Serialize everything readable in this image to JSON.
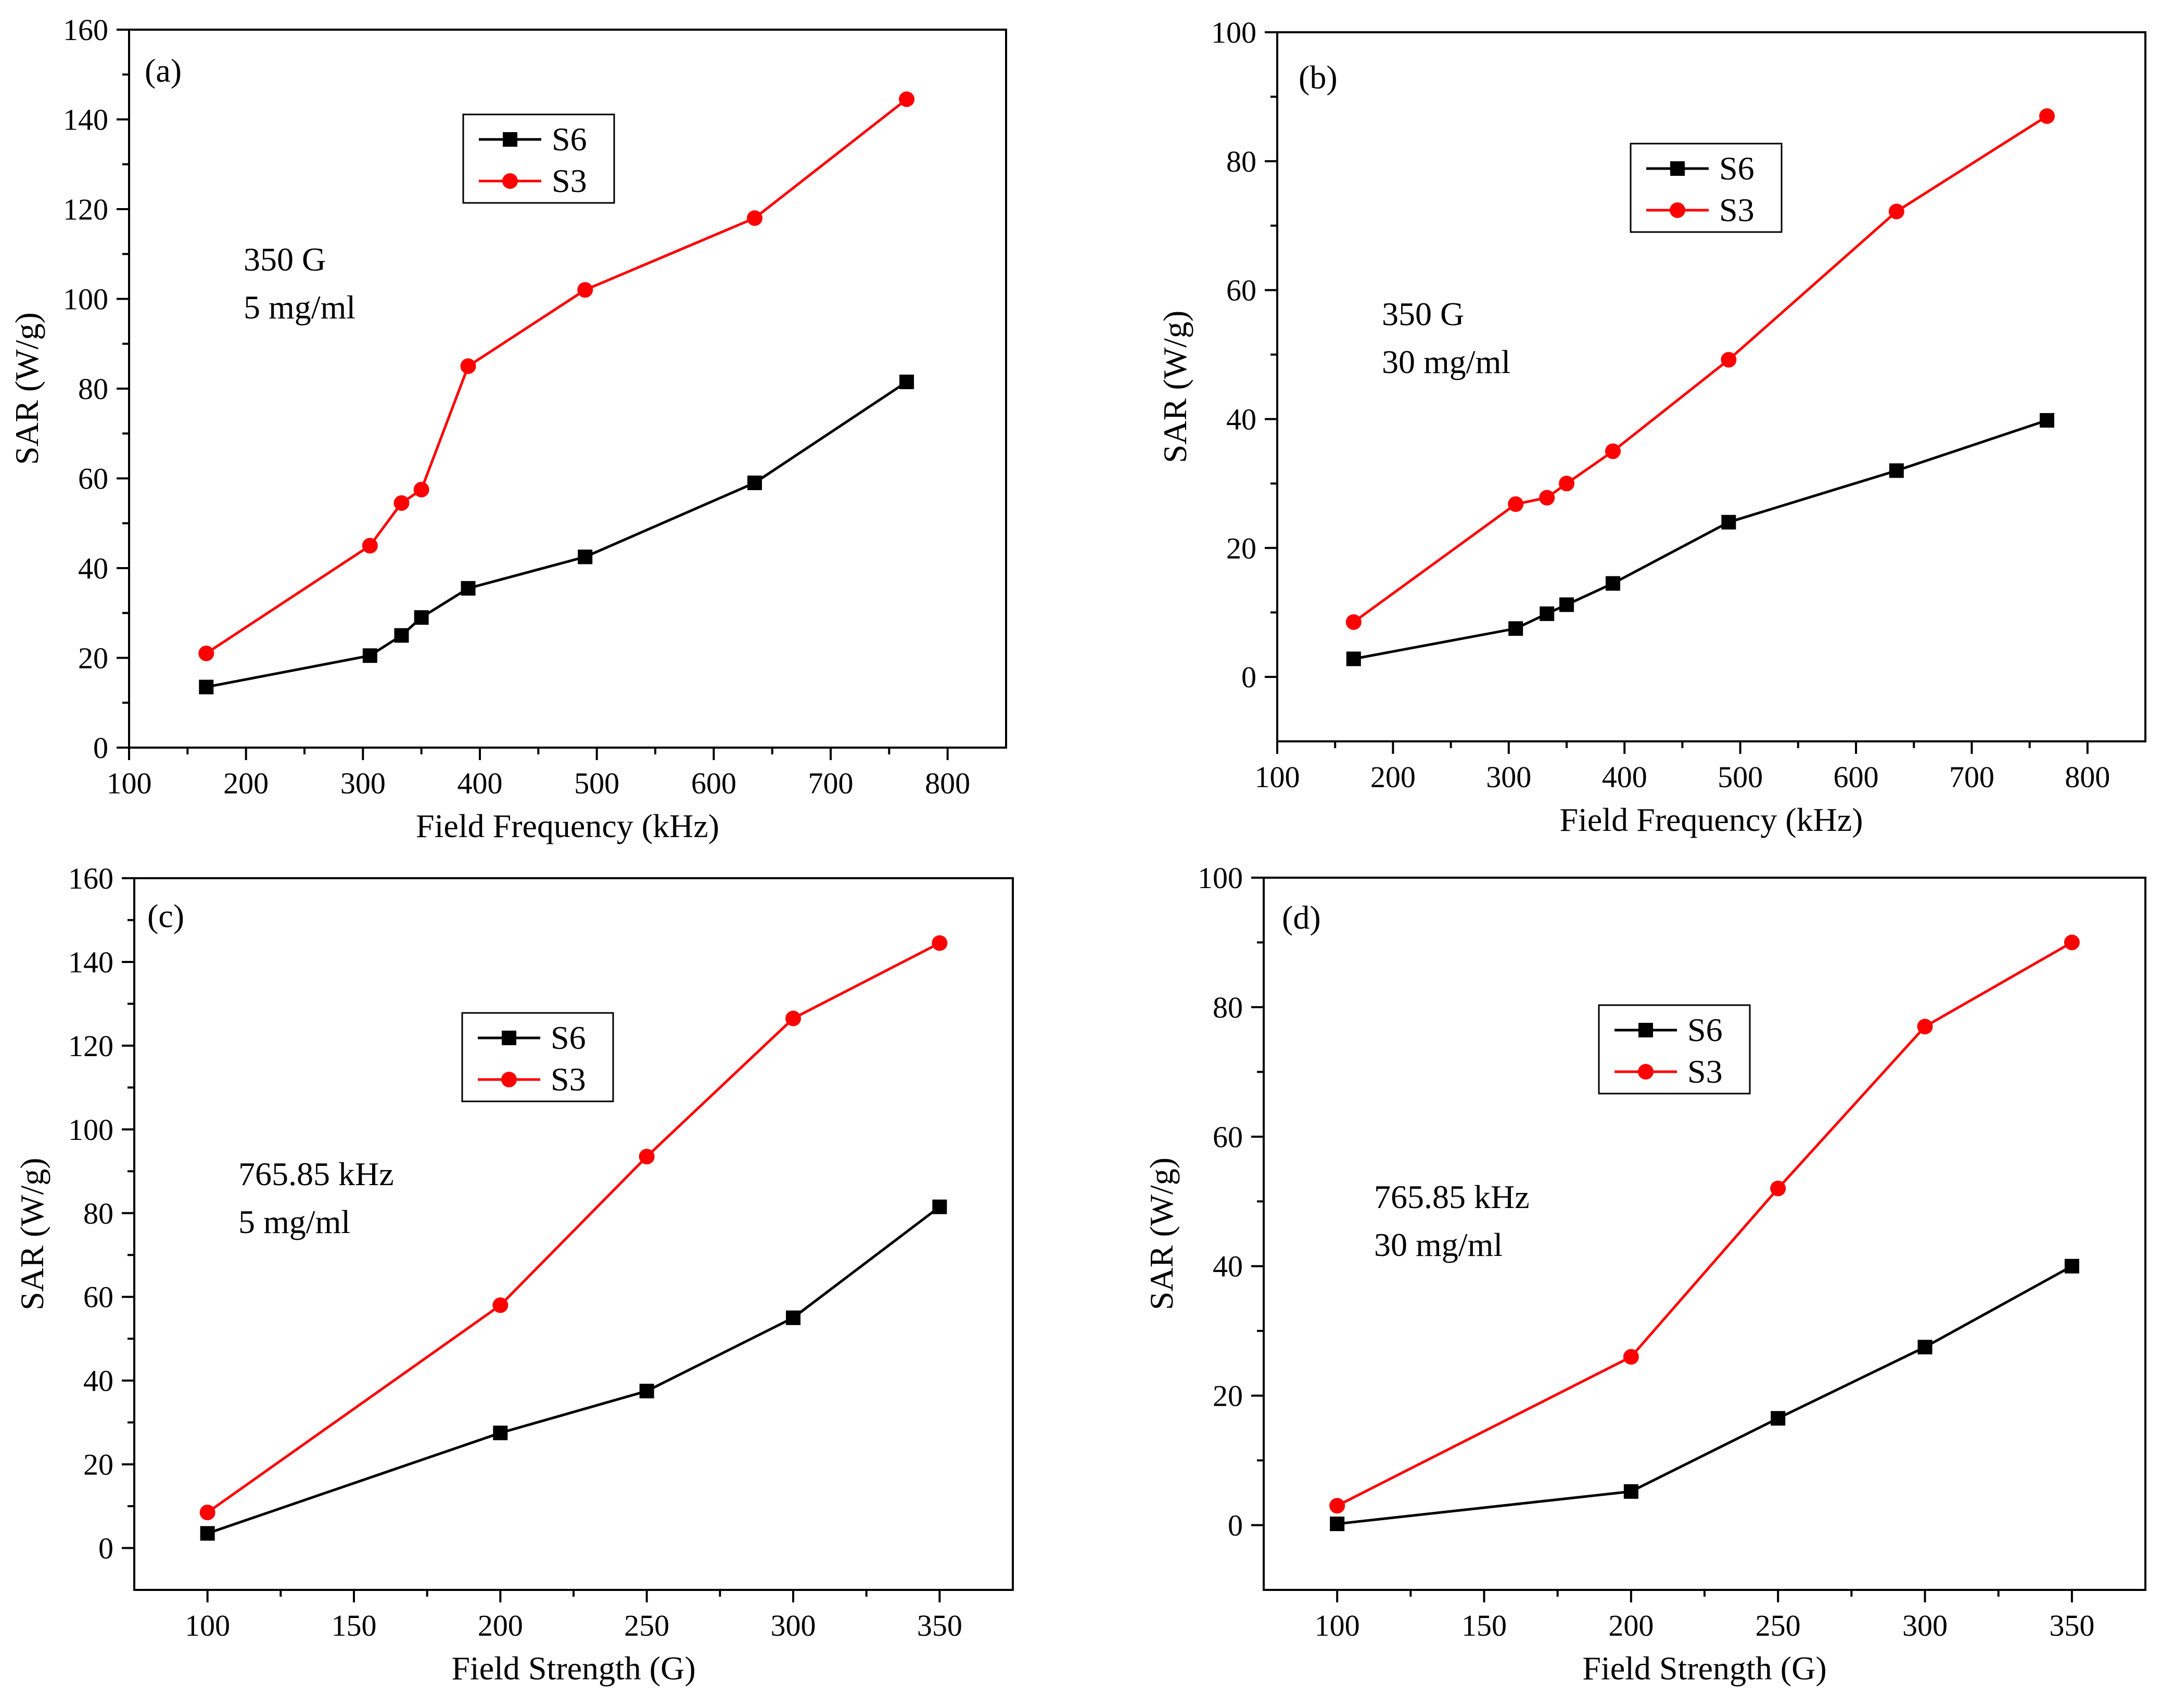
{
  "chart_data": [
    {
      "panel_label": "(a)",
      "type": "line",
      "xlabel": "Field Frequency (kHz)",
      "ylabel": "SAR (W/g)",
      "xlim": [
        100,
        850
      ],
      "ylim": [
        0,
        160
      ],
      "xticks": [
        100,
        200,
        300,
        400,
        500,
        600,
        700,
        800
      ],
      "yticks": [
        0,
        20,
        40,
        60,
        80,
        100,
        120,
        140,
        160
      ],
      "annotation": [
        "350 G",
        "5 mg/ml"
      ],
      "legend_position": "top-center",
      "series": [
        {
          "name": "S6",
          "color": "#000000",
          "marker": "square",
          "x": [
            166,
            306,
            333,
            350,
            390,
            490,
            635,
            765
          ],
          "y": [
            13.5,
            20.5,
            25,
            29,
            35.5,
            42.5,
            59,
            81.5
          ]
        },
        {
          "name": "S3",
          "color": "#ff0000",
          "marker": "circle",
          "x": [
            166,
            306,
            333,
            350,
            390,
            490,
            635,
            765
          ],
          "y": [
            21,
            45,
            54.5,
            57.5,
            85,
            102,
            118,
            144.5
          ]
        }
      ]
    },
    {
      "panel_label": "(b)",
      "type": "line",
      "xlabel": "Field Frequency (kHz)",
      "ylabel": "SAR (W/g)",
      "xlim": [
        100,
        850
      ],
      "ylim": [
        -10,
        100
      ],
      "xticks": [
        100,
        200,
        300,
        400,
        500,
        600,
        700,
        800
      ],
      "yticks": [
        0,
        20,
        40,
        60,
        80,
        100
      ],
      "annotation": [
        "350 G",
        "30 mg/ml"
      ],
      "legend_position": "top-right",
      "series": [
        {
          "name": "S6",
          "color": "#000000",
          "marker": "square",
          "x": [
            166,
            306,
            333,
            350,
            390,
            490,
            635,
            765
          ],
          "y": [
            2.8,
            7.5,
            9.8,
            11.2,
            14.5,
            24,
            32,
            39.8
          ]
        },
        {
          "name": "S3",
          "color": "#ff0000",
          "marker": "circle",
          "x": [
            166,
            306,
            333,
            350,
            390,
            490,
            635,
            765
          ],
          "y": [
            8.5,
            26.8,
            27.8,
            30,
            35,
            49.2,
            72.2,
            87
          ]
        }
      ]
    },
    {
      "panel_label": "(c)",
      "type": "line",
      "xlabel": "Field Strength (G)",
      "ylabel": "SAR (W/g)",
      "xlim": [
        75,
        375
      ],
      "ylim": [
        -10,
        160
      ],
      "xticks": [
        100,
        150,
        200,
        250,
        300,
        350
      ],
      "yticks": [
        0,
        20,
        40,
        60,
        80,
        100,
        120,
        140,
        160
      ],
      "annotation": [
        "765.85 kHz",
        "5 mg/ml"
      ],
      "legend_position": "top-center",
      "series": [
        {
          "name": "S6",
          "color": "#000000",
          "marker": "square",
          "x": [
            100,
            200,
            250,
            300,
            350
          ],
          "y": [
            3.5,
            27.5,
            37.5,
            55,
            81.5
          ]
        },
        {
          "name": "S3",
          "color": "#ff0000",
          "marker": "circle",
          "x": [
            100,
            200,
            250,
            300,
            350
          ],
          "y": [
            8.5,
            58,
            93.5,
            126.5,
            144.5
          ]
        }
      ]
    },
    {
      "panel_label": "(d)",
      "type": "line",
      "xlabel": "Field Strength (G)",
      "ylabel": "SAR (W/g)",
      "xlim": [
        75,
        375
      ],
      "ylim": [
        -10,
        100
      ],
      "xticks": [
        100,
        150,
        200,
        250,
        300,
        350
      ],
      "yticks": [
        0,
        20,
        40,
        60,
        80,
        100
      ],
      "annotation": [
        "765.85 kHz",
        "30 mg/ml"
      ],
      "legend_position": "top-center",
      "series": [
        {
          "name": "S6",
          "color": "#000000",
          "marker": "square",
          "x": [
            100,
            200,
            250,
            300,
            350
          ],
          "y": [
            0.2,
            5.2,
            16.5,
            27.5,
            40
          ]
        },
        {
          "name": "S3",
          "color": "#ff0000",
          "marker": "circle",
          "x": [
            100,
            200,
            250,
            300,
            350
          ],
          "y": [
            3,
            26,
            52,
            77,
            90
          ]
        }
      ]
    }
  ]
}
